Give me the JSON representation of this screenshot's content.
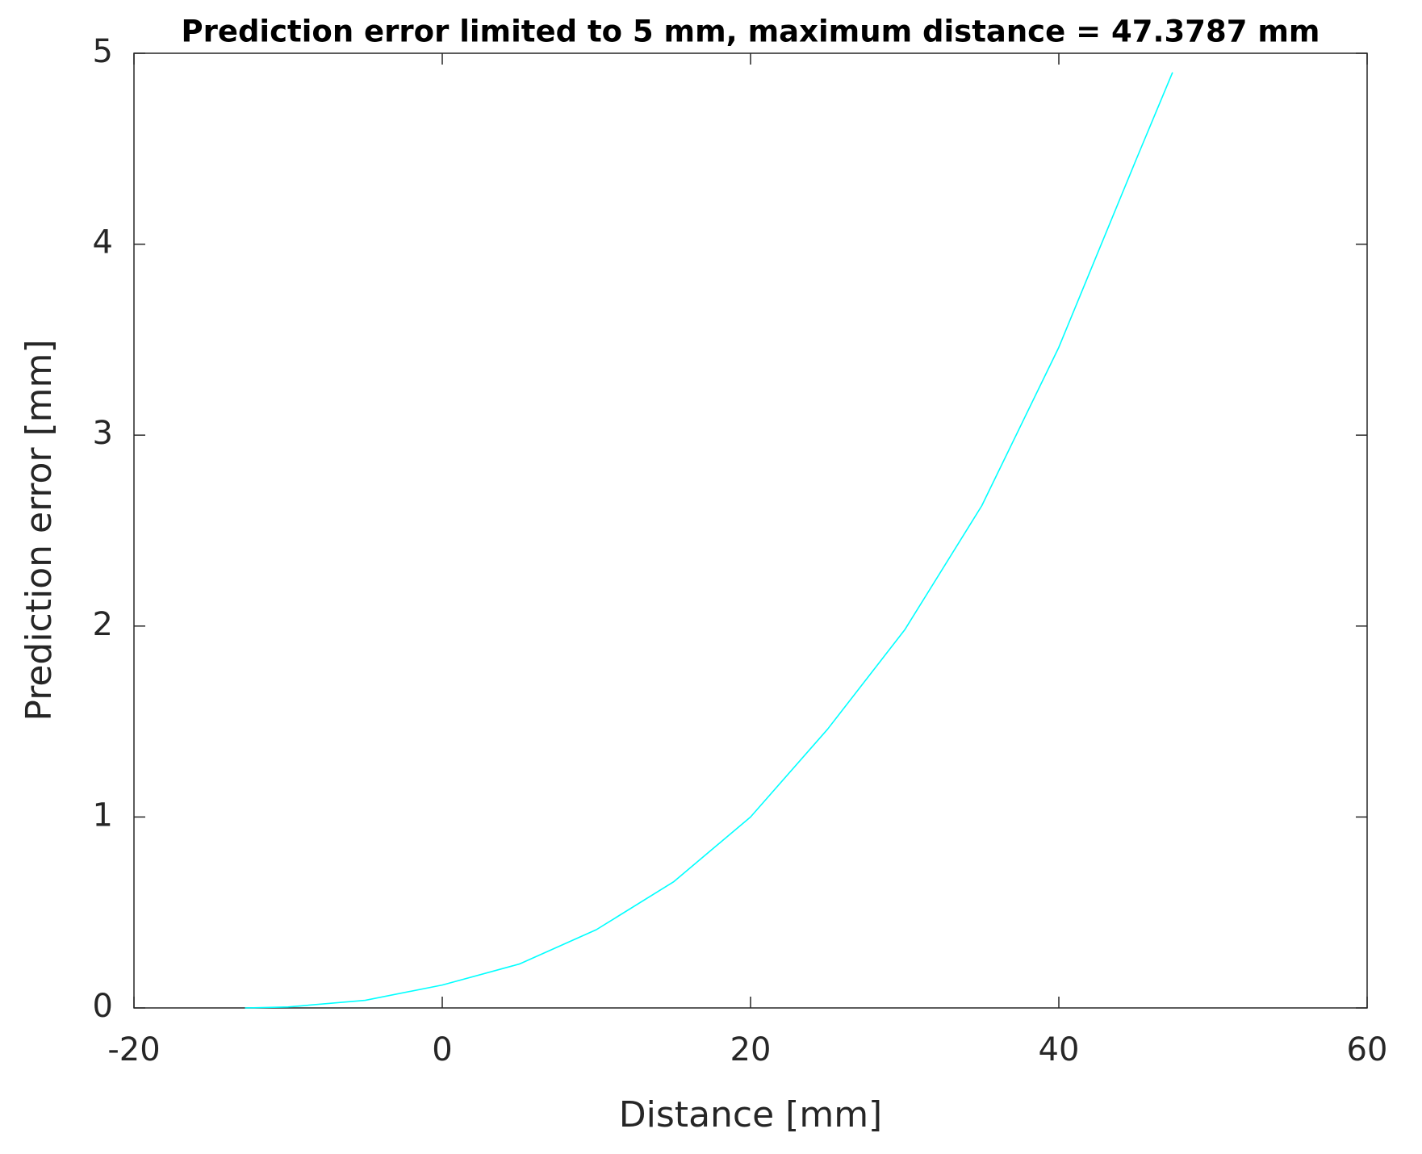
{
  "chart_data": {
    "type": "line",
    "title": "Prediction error limited to 5 mm, maximum distance = 47.3787 mm",
    "x_label": "Distance [mm]",
    "y_label": "Prediction error [mm]",
    "x": [
      -12.8,
      -10,
      -5,
      0,
      5,
      10,
      15,
      20,
      25,
      30,
      35,
      40,
      45,
      47.3787
    ],
    "values": [
      0,
      0.005,
      0.04,
      0.12,
      0.23,
      0.41,
      0.66,
      1.0,
      1.46,
      1.98,
      2.63,
      3.46,
      4.44,
      4.9
    ],
    "color": "#00ffff",
    "xlim": [
      -20,
      60
    ],
    "xticks": [
      -20,
      0,
      20,
      40,
      60
    ],
    "ylim": [
      0,
      5
    ],
    "yticks": [
      0,
      1,
      2,
      3,
      4,
      5
    ],
    "grid": false
  }
}
